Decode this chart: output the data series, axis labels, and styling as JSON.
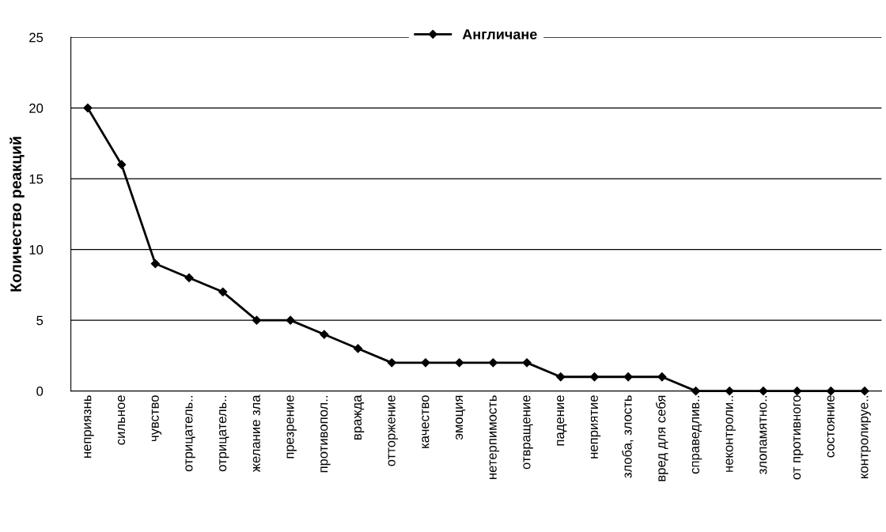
{
  "chart_data": {
    "type": "line",
    "ylabel": "Количество реакций",
    "categories": [
      "неприязнь",
      "сильное",
      "чувство",
      "отрицатель..",
      "отрицатель..",
      "желание зла",
      "презрение",
      "противопол..",
      "вражда",
      "отторжение",
      "качество",
      "эмоция",
      "нетерпимость",
      "отвращение",
      "падение",
      "неприятие",
      "злоба, злость",
      "вред для себя",
      "справедлив..",
      "неконтроли..",
      "злопамятно..",
      "от противного",
      "состояние",
      "контролируе.."
    ],
    "series": [
      {
        "name": "Англичане",
        "color": "#000000",
        "values": [
          20,
          16,
          9,
          8,
          7,
          5,
          5,
          4,
          3,
          2,
          2,
          2,
          2,
          2,
          1,
          1,
          1,
          1,
          0,
          0,
          0,
          0,
          0,
          0
        ]
      }
    ],
    "ylim": [
      0,
      25
    ],
    "yticks": [
      0,
      5,
      10,
      15,
      20,
      25
    ],
    "grid": "y",
    "legend": "top",
    "marker": "diamond",
    "line_style": "solid"
  }
}
